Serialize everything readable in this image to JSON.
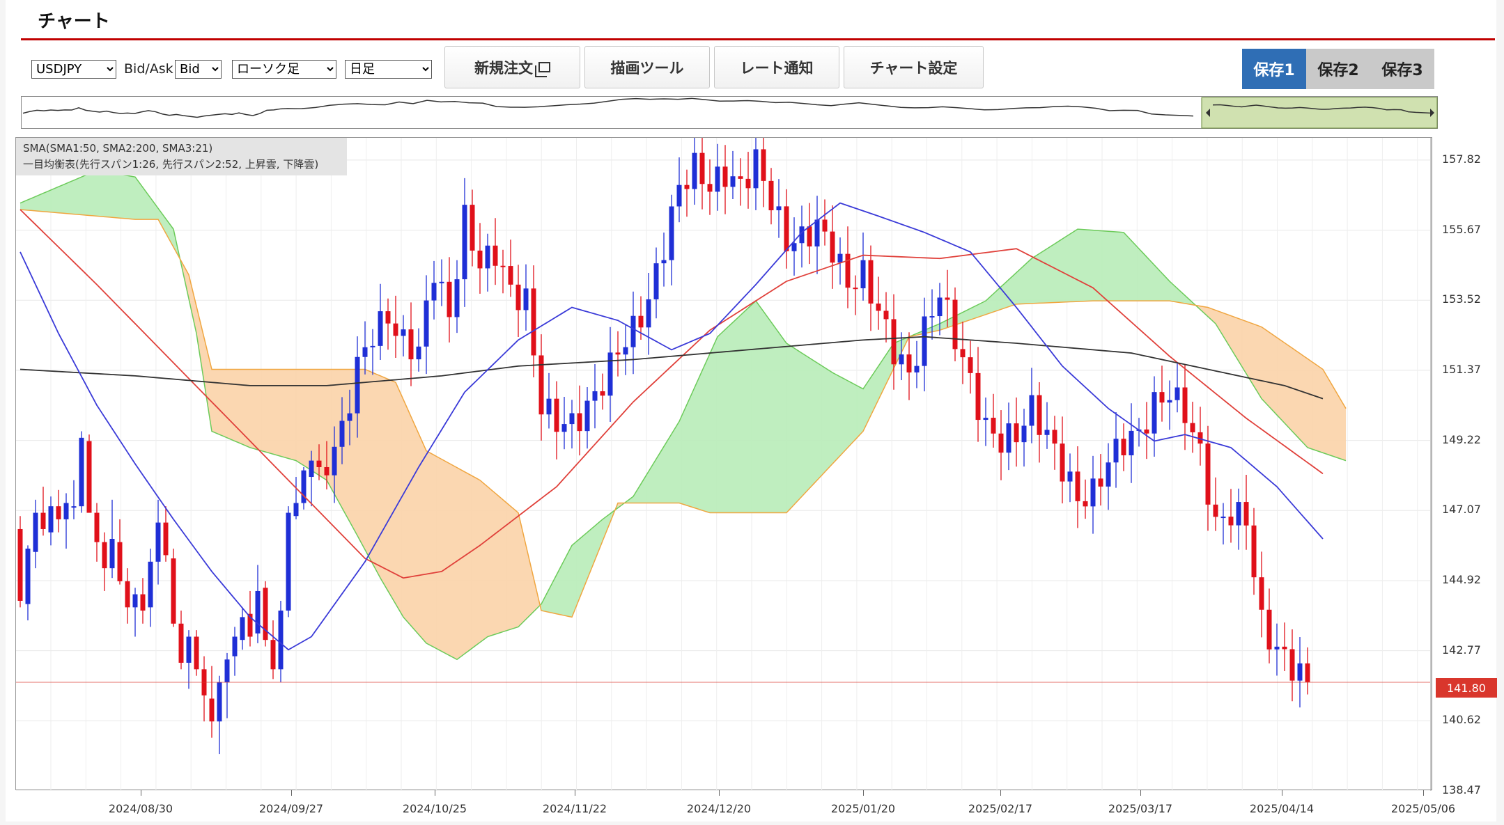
{
  "header": {
    "title": "チャート"
  },
  "toolbar": {
    "symbol": {
      "value": "USDJPY",
      "options": [
        "USDJPY"
      ]
    },
    "bid_ask_label": "Bid/Ask",
    "bid_ask": {
      "value": "Bid",
      "options": [
        "Bid"
      ]
    },
    "chart_type": {
      "value": "ローソク足",
      "options": [
        "ローソク足"
      ]
    },
    "timeframe": {
      "value": "日足",
      "options": [
        "日足"
      ]
    },
    "new_order_label": "新規注文",
    "draw_tools_label": "描画ツール",
    "rate_alert_label": "レート通知",
    "chart_settings_label": "チャート設定",
    "save_buttons": [
      {
        "label": "保存1",
        "active": true
      },
      {
        "label": "保存2",
        "active": false
      },
      {
        "label": "保存3",
        "active": false
      }
    ]
  },
  "colors": {
    "accent_red": "#c00000",
    "save_active_bg": "#2f6eb5",
    "save_inactive_bg": "#c9c9c9",
    "bull_candle": "#1f2fd6",
    "bear_candle": "#e0101a",
    "sma_short": "#3a3ad8",
    "sma_mid": "#e0403a",
    "sma_long": "#333333",
    "cloud_up_fill": "#b8ecb8",
    "cloud_down_fill": "#fbd3a8",
    "current_price": "#d9362c"
  },
  "indicators": {
    "sma_label": "SMA(SMA1:50, SMA2:200, SMA3:21)",
    "ichimoku_label": "一目均衡表(先行スパン1:26, 先行スパン2:52, 上昇雲, 下降雲)"
  },
  "chart_data": {
    "type": "candlestick",
    "symbol": "USDJPY",
    "yticks": [
      "157.82",
      "155.67",
      "153.52",
      "151.37",
      "149.22",
      "147.07",
      "144.92",
      "142.77",
      "140.62",
      "138.47"
    ],
    "ylim": [
      138.47,
      158.5
    ],
    "xticks": [
      "2024/08/30",
      "2024/09/27",
      "2024/10/25",
      "2024/11/22",
      "2024/12/20",
      "2025/01/20",
      "2025/02/17",
      "2025/03/17",
      "2025/04/14",
      "2025/05/06"
    ],
    "current_price": "141.80",
    "series": [
      {
        "name": "SMA1:50",
        "color": "#e0403a",
        "points": [
          [
            0,
            156.3
          ],
          [
            10,
            154.0
          ],
          [
            20,
            151.6
          ],
          [
            30,
            149.2
          ],
          [
            40,
            146.8
          ],
          [
            45,
            145.6
          ],
          [
            50,
            145.0
          ],
          [
            55,
            145.2
          ],
          [
            60,
            146.0
          ],
          [
            70,
            147.8
          ],
          [
            80,
            150.4
          ],
          [
            90,
            152.6
          ],
          [
            100,
            154.1
          ],
          [
            110,
            154.9
          ],
          [
            120,
            154.8
          ],
          [
            130,
            155.1
          ],
          [
            140,
            153.9
          ],
          [
            150,
            151.8
          ],
          [
            160,
            149.9
          ],
          [
            170,
            148.2
          ]
        ]
      },
      {
        "name": "SMA2:200",
        "color": "#333333",
        "points": [
          [
            0,
            151.4
          ],
          [
            15,
            151.2
          ],
          [
            30,
            150.9
          ],
          [
            40,
            150.9
          ],
          [
            55,
            151.2
          ],
          [
            65,
            151.5
          ],
          [
            80,
            151.7
          ],
          [
            95,
            152.0
          ],
          [
            110,
            152.3
          ],
          [
            118,
            152.4
          ],
          [
            130,
            152.2
          ],
          [
            145,
            151.9
          ],
          [
            155,
            151.4
          ],
          [
            165,
            150.9
          ],
          [
            170,
            150.5
          ]
        ]
      },
      {
        "name": "SMA3:21",
        "color": "#3a3ad8",
        "points": [
          [
            0,
            155.0
          ],
          [
            5,
            152.5
          ],
          [
            10,
            150.3
          ],
          [
            15,
            148.5
          ],
          [
            20,
            146.8
          ],
          [
            25,
            145.2
          ],
          [
            30,
            143.8
          ],
          [
            35,
            142.8
          ],
          [
            38,
            143.2
          ],
          [
            45,
            145.5
          ],
          [
            52,
            148.4
          ],
          [
            58,
            150.7
          ],
          [
            65,
            152.3
          ],
          [
            72,
            153.3
          ],
          [
            78,
            152.9
          ],
          [
            85,
            152.0
          ],
          [
            90,
            152.5
          ],
          [
            96,
            154.0
          ],
          [
            102,
            155.6
          ],
          [
            107,
            156.5
          ],
          [
            112,
            156.1
          ],
          [
            118,
            155.6
          ],
          [
            124,
            155.0
          ],
          [
            130,
            153.3
          ],
          [
            136,
            151.5
          ],
          [
            142,
            150.2
          ],
          [
            148,
            149.2
          ],
          [
            152,
            149.4
          ],
          [
            158,
            149.0
          ],
          [
            164,
            147.8
          ],
          [
            170,
            146.2
          ]
        ]
      }
    ],
    "ichimoku": {
      "span_a": [
        [
          0,
          156.5
        ],
        [
          10,
          157.5
        ],
        [
          15,
          157.3
        ],
        [
          20,
          155.7
        ],
        [
          23,
          152.5
        ],
        [
          25,
          149.5
        ],
        [
          30,
          149.0
        ],
        [
          36,
          148.6
        ],
        [
          40,
          148.0
        ],
        [
          44,
          146.3
        ],
        [
          47,
          145.0
        ],
        [
          50,
          143.8
        ],
        [
          53,
          143.0
        ],
        [
          57,
          142.5
        ],
        [
          61,
          143.2
        ],
        [
          65,
          143.5
        ],
        [
          68,
          144.2
        ],
        [
          72,
          146.0
        ],
        [
          76,
          146.8
        ],
        [
          80,
          147.5
        ],
        [
          86,
          149.8
        ],
        [
          91,
          152.4
        ],
        [
          96,
          153.5
        ],
        [
          100,
          152.2
        ],
        [
          106,
          151.3
        ],
        [
          110,
          150.8
        ],
        [
          114,
          152.2
        ],
        [
          120,
          152.8
        ],
        [
          126,
          153.5
        ],
        [
          132,
          154.8
        ],
        [
          138,
          155.7
        ],
        [
          144,
          155.6
        ],
        [
          150,
          154.1
        ],
        [
          156,
          152.8
        ],
        [
          162,
          150.5
        ],
        [
          168,
          149.0
        ],
        [
          173,
          148.6
        ]
      ],
      "span_b": [
        [
          0,
          156.3
        ],
        [
          15,
          156.0
        ],
        [
          18,
          156.0
        ],
        [
          22,
          154.3
        ],
        [
          25,
          151.4
        ],
        [
          30,
          151.4
        ],
        [
          45,
          151.4
        ],
        [
          49,
          151.0
        ],
        [
          53,
          148.9
        ],
        [
          60,
          148.0
        ],
        [
          65,
          147.0
        ],
        [
          68,
          144.0
        ],
        [
          72,
          143.8
        ],
        [
          78,
          147.3
        ],
        [
          86,
          147.3
        ],
        [
          90,
          147.0
        ],
        [
          100,
          147.0
        ],
        [
          110,
          149.5
        ],
        [
          116,
          152.4
        ],
        [
          120,
          152.6
        ],
        [
          130,
          153.4
        ],
        [
          140,
          153.5
        ],
        [
          150,
          153.5
        ],
        [
          155,
          153.3
        ],
        [
          162,
          152.7
        ],
        [
          170,
          151.4
        ],
        [
          173,
          150.2
        ]
      ]
    },
    "candles_ohlc": [
      [
        146.5,
        146.9,
        144.1,
        144.3
      ],
      [
        144.2,
        146.0,
        143.7,
        145.9
      ],
      [
        145.8,
        147.4,
        145.3,
        147.0
      ],
      [
        147.0,
        147.8,
        146.3,
        146.5
      ],
      [
        146.4,
        147.5,
        146.0,
        147.2
      ],
      [
        147.2,
        147.7,
        146.4,
        146.8
      ],
      [
        146.8,
        147.6,
        145.9,
        147.3
      ],
      [
        147.2,
        148.0,
        146.8,
        147.2
      ],
      [
        147.2,
        149.5,
        147.0,
        149.3
      ],
      [
        149.2,
        149.4,
        147.0,
        147.0
      ],
      [
        147.0,
        147.3,
        145.5,
        146.1
      ],
      [
        146.1,
        146.4,
        144.6,
        145.3
      ],
      [
        145.3,
        147.4,
        145.0,
        146.2
      ],
      [
        146.1,
        146.8,
        144.8,
        144.9
      ],
      [
        144.9,
        145.3,
        143.6,
        144.1
      ],
      [
        144.1,
        144.7,
        143.2,
        144.5
      ],
      [
        144.5,
        145.0,
        143.6,
        144.0
      ],
      [
        144.1,
        145.9,
        143.5,
        145.5
      ],
      [
        145.5,
        147.4,
        144.8,
        146.7
      ],
      [
        146.7,
        147.2,
        145.5,
        145.7
      ],
      [
        145.6,
        145.9,
        143.5,
        143.6
      ],
      [
        143.6,
        144.0,
        142.2,
        142.4
      ],
      [
        142.4,
        143.4,
        141.6,
        143.2
      ],
      [
        143.2,
        143.4,
        142.0,
        142.2
      ],
      [
        142.2,
        142.6,
        140.6,
        141.4
      ],
      [
        141.3,
        142.3,
        140.1,
        140.6
      ],
      [
        140.6,
        142.0,
        139.6,
        141.8
      ],
      [
        141.8,
        142.7,
        140.7,
        142.5
      ],
      [
        142.6,
        143.5,
        142.0,
        143.2
      ],
      [
        143.1,
        144.1,
        142.8,
        143.8
      ],
      [
        143.9,
        144.6,
        142.9,
        143.2
      ],
      [
        143.3,
        145.4,
        143.0,
        144.6
      ],
      [
        144.7,
        144.9,
        142.9,
        143.1
      ],
      [
        143.1,
        143.7,
        141.9,
        142.2
      ],
      [
        142.2,
        144.3,
        141.8,
        144.0
      ],
      [
        144.0,
        147.2,
        143.8,
        147.0
      ],
      [
        146.9,
        148.1,
        146.8,
        147.3
      ],
      [
        147.3,
        148.4,
        147.1,
        148.3
      ],
      [
        148.1,
        148.9,
        147.2,
        148.6
      ],
      [
        148.6,
        149.1,
        148.0,
        148.4
      ]
    ],
    "candles_note": "bulk of the remaining daily candles rendered procedurally from the same series"
  }
}
